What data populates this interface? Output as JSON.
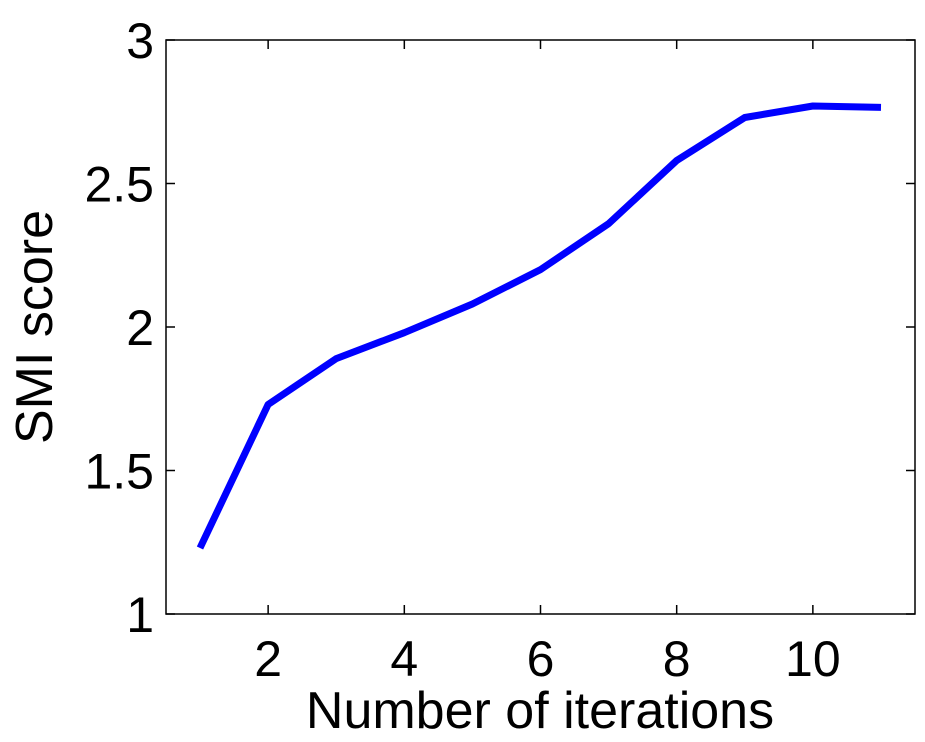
{
  "chart_data": {
    "type": "line",
    "title": "",
    "xlabel": "Number of iterations",
    "ylabel": "SMI score",
    "xlim": [
      0.5,
      11.5
    ],
    "ylim": [
      1,
      3
    ],
    "xticks": [
      2,
      4,
      6,
      8,
      10
    ],
    "yticks": [
      1,
      1.5,
      2,
      2.5,
      3
    ],
    "xtick_labels": [
      "2",
      "4",
      "6",
      "8",
      "10"
    ],
    "ytick_labels": [
      "1",
      "1.5",
      "2",
      "2.5",
      "3"
    ],
    "grid": false,
    "series": [
      {
        "color": "#0000ff",
        "x": [
          1,
          2,
          3,
          4,
          5,
          6,
          7,
          8,
          9,
          10,
          11
        ],
        "y": [
          1.23,
          1.73,
          1.89,
          1.98,
          2.08,
          2.2,
          2.36,
          2.58,
          2.73,
          2.77,
          2.765
        ]
      }
    ]
  }
}
